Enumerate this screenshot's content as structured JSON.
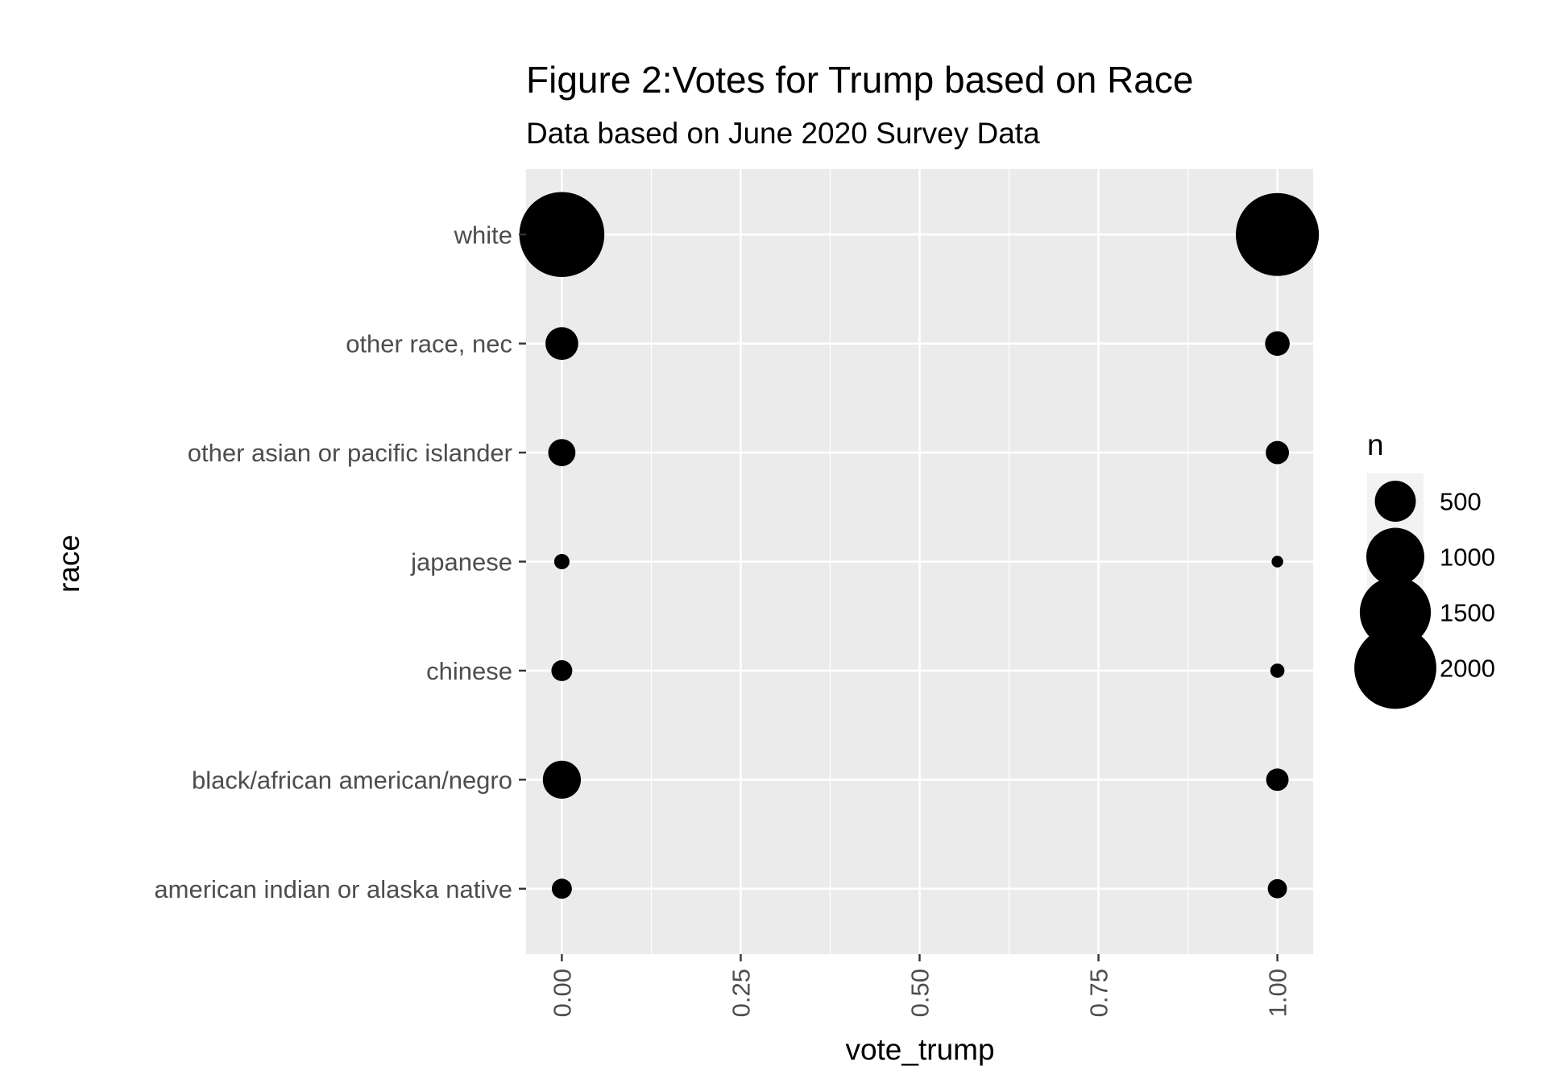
{
  "chart_data": {
    "type": "scatter",
    "title": "Figure 2:Votes for Trump based on Race",
    "subtitle": "Data based on June 2020 Survey Data",
    "xlabel": "vote_trump",
    "ylabel": "race",
    "xlim": [
      -0.05,
      1.05
    ],
    "x_ticks": [
      "0.00",
      "0.25",
      "0.50",
      "0.75",
      "1.00"
    ],
    "categories": [
      "american indian or alaska native",
      "black/african american/negro",
      "chinese",
      "japanese",
      "other asian or pacific islander",
      "other race, nec",
      "white"
    ],
    "points": [
      {
        "race": "white",
        "vote_trump": 0,
        "n": 2150
      },
      {
        "race": "white",
        "vote_trump": 1,
        "n": 2050
      },
      {
        "race": "other race, nec",
        "vote_trump": 0,
        "n": 320
      },
      {
        "race": "other race, nec",
        "vote_trump": 1,
        "n": 180
      },
      {
        "race": "other asian or pacific islander",
        "vote_trump": 0,
        "n": 220
      },
      {
        "race": "other asian or pacific islander",
        "vote_trump": 1,
        "n": 160
      },
      {
        "race": "japanese",
        "vote_trump": 0,
        "n": 70
      },
      {
        "race": "japanese",
        "vote_trump": 1,
        "n": 40
      },
      {
        "race": "chinese",
        "vote_trump": 0,
        "n": 130
      },
      {
        "race": "chinese",
        "vote_trump": 1,
        "n": 60
      },
      {
        "race": "black/african american/negro",
        "vote_trump": 0,
        "n": 430
      },
      {
        "race": "black/african american/negro",
        "vote_trump": 1,
        "n": 150
      },
      {
        "race": "american indian or alaska native",
        "vote_trump": 0,
        "n": 120
      },
      {
        "race": "american indian or alaska native",
        "vote_trump": 1,
        "n": 110
      }
    ],
    "legend": {
      "title": "n",
      "position": "right",
      "items": [
        {
          "label": "500",
          "n": 500
        },
        {
          "label": "1000",
          "n": 1000
        },
        {
          "label": "1500",
          "n": 1500
        },
        {
          "label": "2000",
          "n": 2000
        }
      ]
    },
    "grid": true,
    "colors": {
      "panel_background": "#ebebeb",
      "grid": "#ffffff",
      "point": "#000000",
      "tick_text": "#4d4d4d",
      "tick_mark": "#333333"
    }
  }
}
